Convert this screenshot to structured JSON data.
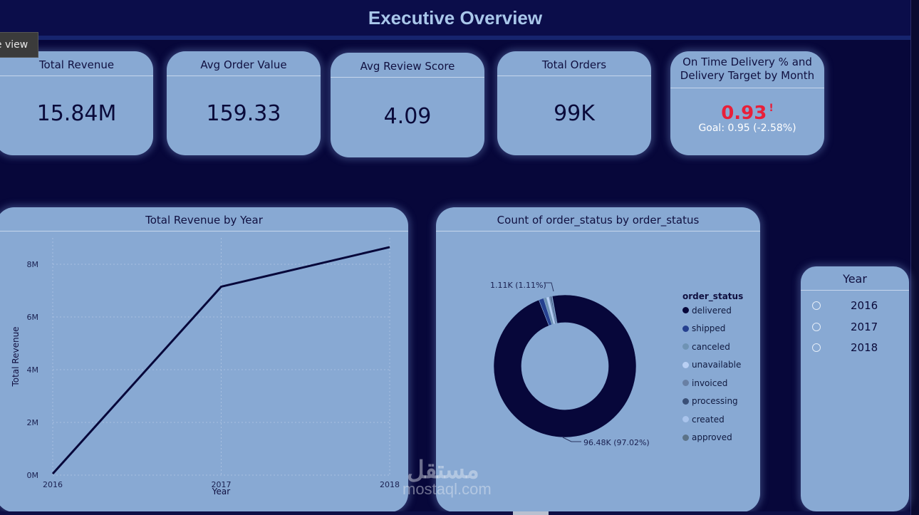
{
  "header": {
    "title": "Executive Overview"
  },
  "tooltip": {
    "text": "le view"
  },
  "kpis": [
    {
      "label": "Total Revenue",
      "value": "15.84M"
    },
    {
      "label": "Avg Order Value",
      "value": "159.33"
    },
    {
      "label": "Avg Review Score",
      "value": "4.09"
    },
    {
      "label": "Total Orders",
      "value": "99K"
    }
  ],
  "delivery": {
    "title": "On Time Delivery % and Delivery Target by Month",
    "value": "0.93",
    "alert": "!",
    "goal": "Goal: 0.95 (-2.58%)",
    "value_color": "#e8203a",
    "area_color": "#c48aa8"
  },
  "revenue_chart": {
    "title": "Total Revenue by Year",
    "xlabel": "Year",
    "ylabel": "Total Revenue",
    "ticks_y": [
      "0M",
      "2M",
      "4M",
      "6M",
      "8M"
    ],
    "ticks_x": [
      "2016",
      "2017",
      "2018"
    ]
  },
  "status_chart": {
    "title": "Count of order_status by order_status",
    "legend_title": "order_status",
    "label_small": "1.11K (1.11%)",
    "label_large": "96.48K (97.02%)"
  },
  "chart_data": [
    {
      "type": "line",
      "title": "Total Revenue by Year",
      "xlabel": "Year",
      "ylabel": "Total Revenue",
      "x": [
        "2016",
        "2017",
        "2018"
      ],
      "series": [
        {
          "values": [
            0.05,
            7.15,
            8.65
          ]
        }
      ],
      "unit": "M",
      "ylim": [
        0,
        9
      ],
      "grid": true,
      "color": "#07073a"
    },
    {
      "type": "pie",
      "title": "Count of order_status by order_status",
      "legend_title": "order_status",
      "legend_position": "right",
      "categories": [
        "delivered",
        "shipped",
        "canceled",
        "unavailable",
        "invoiced",
        "processing",
        "created",
        "approved"
      ],
      "values": [
        96.48,
        1.11,
        0.63,
        0.61,
        0.31,
        0.3,
        0.005,
        0.002
      ],
      "colors": [
        "#07073a",
        "#25408f",
        "#6f93b4",
        "#b9d0f4",
        "#6980a4",
        "#3a5077",
        "#a9c4ec",
        "#5c7388"
      ],
      "donut": true
    }
  ],
  "slicer": {
    "title": "Year",
    "options": [
      "2016",
      "2017",
      "2018"
    ]
  },
  "watermark": {
    "arabic": "مستقل",
    "latin": "mostaql.com"
  }
}
